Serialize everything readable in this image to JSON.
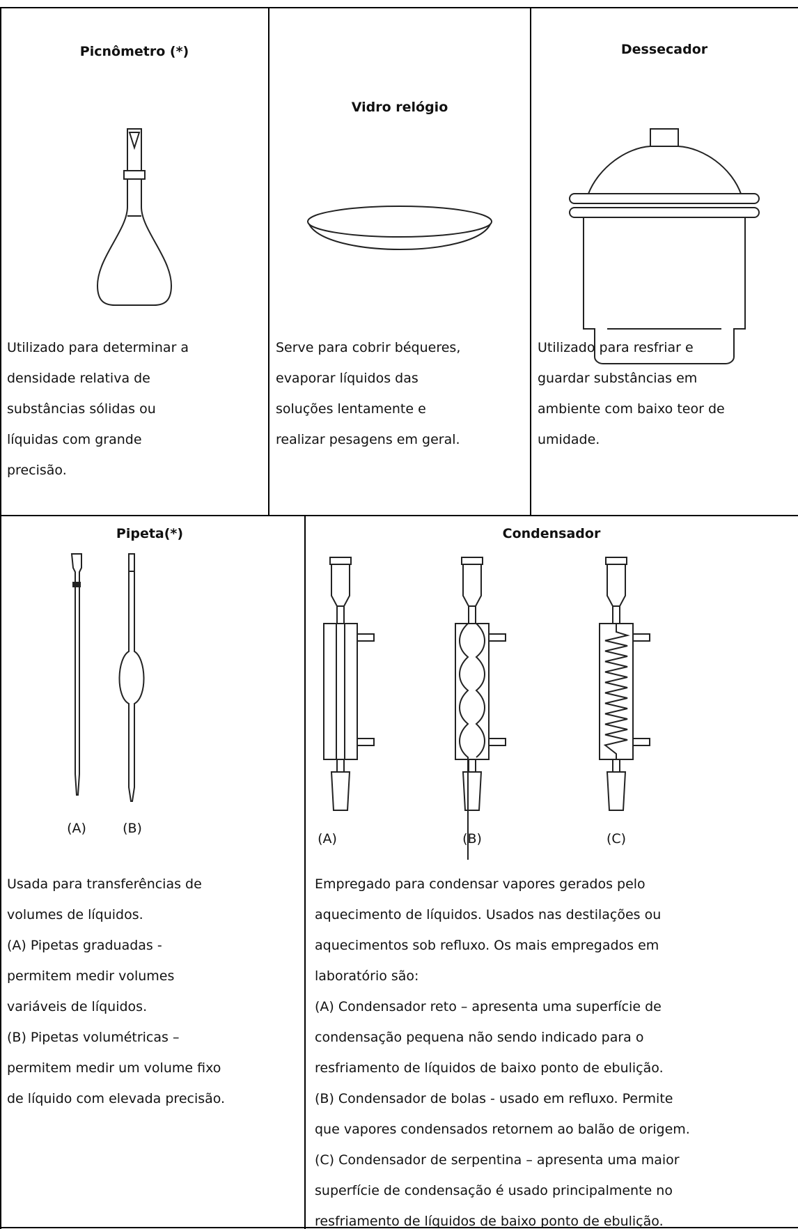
{
  "top_row": [
    {
      "title": "Picnômetro (*)",
      "description": [
        "Utilizado para determinar a",
        "densidade relativa de",
        "substâncias sólidas ou",
        "líquidas com grande",
        "precisão."
      ]
    },
    {
      "title": "Vidro relógio",
      "description": [
        "Serve para cobrir béqueres,",
        "evaporar líquidos das",
        "soluções lentamente e",
        "realizar pesagens em geral."
      ]
    },
    {
      "title": "Dessecador",
      "description": [
        "Utilizado para resfriar e",
        "guardar substâncias em",
        "ambiente com baixo teor de",
        "umidade."
      ]
    }
  ],
  "bottom_row": [
    {
      "title": "Pipeta(*)",
      "labels": [
        "(A)",
        "(B)"
      ],
      "description": [
        "Usada para transferências de",
        "volumes de líquidos.",
        "(A) Pipetas graduadas -",
        "permitem medir volumes",
        "variáveis de líquidos.",
        "(B) Pipetas volumétricas –",
        "permitem medir um volume fixo",
        "de líquido com elevada precisão."
      ]
    },
    {
      "title": "Condensador",
      "labels": [
        "(A)",
        "(B)",
        "(C)"
      ],
      "description": [
        "Empregado para condensar vapores gerados pelo",
        "aquecimento de líquidos. Usados nas destilações ou",
        "aquecimentos sob refluxo. Os mais empregados em",
        "laboratório são:",
        "(A) Condensador reto – apresenta uma superfície de",
        "condensação pequena não sendo indicado para o",
        "resfriamento de líquidos de baixo ponto de ebulição.",
        "(B) Condensador de bolas - usado em refluxo. Permite",
        "que vapores condensados retornem ao balão de origem.",
        "(C) Condensador de serpentina – apresenta uma maior",
        "superfície de condensação é usado principalmente no",
        "resfriamento de líquidos de baixo ponto de ebulição."
      ]
    }
  ]
}
